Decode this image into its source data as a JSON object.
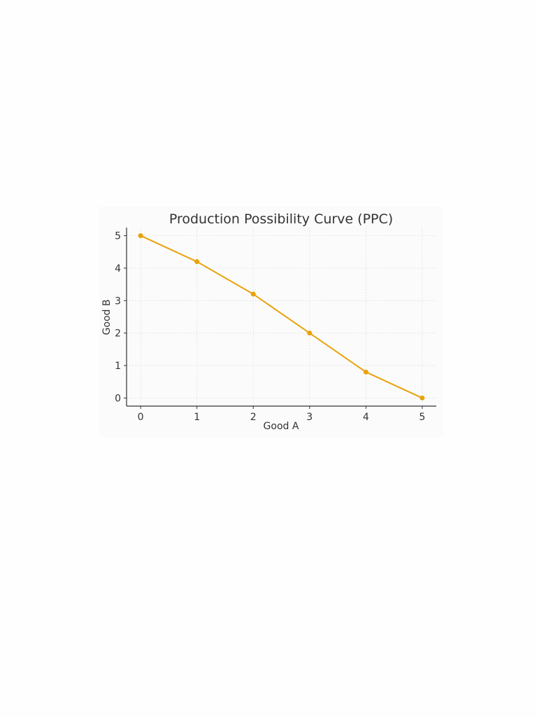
{
  "chart_data": {
    "type": "line",
    "title": "Production Possibility Curve (PPC)",
    "xlabel": "Good A",
    "ylabel": "Good B",
    "x": [
      0,
      1,
      2,
      3,
      4,
      5
    ],
    "series": [
      {
        "values": [
          5,
          4.2,
          3.2,
          2,
          0.8,
          0
        ]
      }
    ],
    "xlim": [
      -0.25,
      5.25
    ],
    "ylim": [
      -0.25,
      5.25
    ],
    "xticks": [
      "0",
      "1",
      "2",
      "3",
      "4",
      "5"
    ],
    "yticks": [
      "0",
      "1",
      "2",
      "3",
      "4",
      "5"
    ],
    "grid": true,
    "markers": true,
    "colors": {
      "series": "#e9a20c",
      "grid": "#e2e2e2",
      "axis": "#333333",
      "text": "#333333",
      "background": "#fbfbfb"
    }
  }
}
